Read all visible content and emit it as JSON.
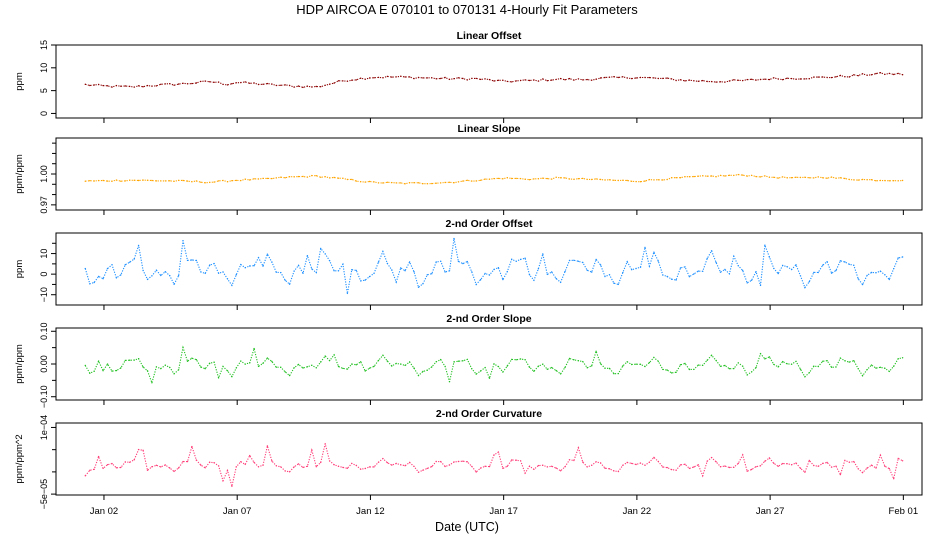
{
  "figure": {
    "title": "HDP   AIRCOA E   070101 to 070131   4-Hourly Fit Parameters",
    "xlabel": "Date (UTC)",
    "x_ticks": [
      "Jan 02",
      "Jan 07",
      "Jan 12",
      "Jan 17",
      "Jan 22",
      "Jan 27",
      "Feb 01"
    ],
    "x_tick_days": [
      2,
      7,
      12,
      17,
      22,
      27,
      32
    ],
    "xlim_days": [
      0.2,
      32.7
    ],
    "data_start_day": 1.3,
    "data_end_day": 32.0,
    "step_days": 0.1667
  },
  "chart_data": [
    {
      "type": "line",
      "title": "Linear Offset",
      "ylabel": "ppm",
      "ylim": [
        -1,
        15
      ],
      "yticks": [
        0,
        5,
        10,
        15
      ],
      "ytick_labels": [
        "0",
        "5",
        "10",
        "15"
      ],
      "color": "#8b0000",
      "series": [
        {
          "x_start": "Jan 01 07:00",
          "x_step_hours": 4,
          "keypoints": [
            [
              1.3,
              6.3
            ],
            [
              2.0,
              6.0
            ],
            [
              3.0,
              5.8
            ],
            [
              4.0,
              6.2
            ],
            [
              5.0,
              6.5
            ],
            [
              6.0,
              7.0
            ],
            [
              6.6,
              6.4
            ],
            [
              7.0,
              6.8
            ],
            [
              8.0,
              6.4
            ],
            [
              9.0,
              6.0
            ],
            [
              10.0,
              5.8
            ],
            [
              11.0,
              7.2
            ],
            [
              12.0,
              7.9
            ],
            [
              13.0,
              8.0
            ],
            [
              14.0,
              7.8
            ],
            [
              15.0,
              7.6
            ],
            [
              16.0,
              7.6
            ],
            [
              17.0,
              7.0
            ],
            [
              18.0,
              7.2
            ],
            [
              19.0,
              7.5
            ],
            [
              20.0,
              7.4
            ],
            [
              21.0,
              7.8
            ],
            [
              22.0,
              7.9
            ],
            [
              23.0,
              7.6
            ],
            [
              24.0,
              7.2
            ],
            [
              25.0,
              7.0
            ],
            [
              26.0,
              7.2
            ],
            [
              27.0,
              7.6
            ],
            [
              28.0,
              7.7
            ],
            [
              29.0,
              7.9
            ],
            [
              30.0,
              8.2
            ],
            [
              31.0,
              8.7
            ],
            [
              32.0,
              8.6
            ]
          ],
          "noise": 0.25
        }
      ]
    },
    {
      "type": "line",
      "title": "Linear Slope",
      "ylabel": "ppm/ppm",
      "ylim": [
        0.965,
        1.035
      ],
      "yticks": [
        0.97,
        1.0
      ],
      "ytick_labels": [
        "0.97",
        "1.00"
      ],
      "ytick_minor": [
        0.98,
        0.99,
        1.01,
        1.02,
        1.03
      ],
      "color": "#ffa500",
      "series": [
        {
          "x_start": "Jan 01 07:00",
          "x_step_hours": 4,
          "keypoints": [
            [
              1.3,
              0.993
            ],
            [
              3.0,
              0.994
            ],
            [
              5.0,
              0.993
            ],
            [
              6.0,
              0.992
            ],
            [
              7.0,
              0.994
            ],
            [
              8.0,
              0.995
            ],
            [
              9.0,
              0.997
            ],
            [
              10.0,
              0.998
            ],
            [
              11.0,
              0.995
            ],
            [
              12.0,
              0.992
            ],
            [
              13.0,
              0.991
            ],
            [
              14.0,
              0.991
            ],
            [
              15.0,
              0.992
            ],
            [
              16.0,
              0.994
            ],
            [
              17.0,
              0.996
            ],
            [
              18.0,
              0.995
            ],
            [
              19.0,
              0.996
            ],
            [
              20.0,
              0.995
            ],
            [
              21.0,
              0.994
            ],
            [
              22.0,
              0.993
            ],
            [
              23.0,
              0.995
            ],
            [
              24.0,
              0.997
            ],
            [
              25.0,
              0.998
            ],
            [
              26.0,
              0.999
            ],
            [
              27.0,
              0.997
            ],
            [
              28.0,
              0.996
            ],
            [
              29.0,
              0.997
            ],
            [
              30.0,
              0.995
            ],
            [
              31.0,
              0.994
            ],
            [
              32.0,
              0.994
            ]
          ],
          "noise": 0.0008
        }
      ]
    },
    {
      "type": "line",
      "title": "2-nd Order Offset",
      "ylabel": "ppm",
      "ylim": [
        -15,
        20
      ],
      "yticks": [
        -10,
        0,
        10
      ],
      "ytick_labels": [
        "−10",
        "0",
        "10"
      ],
      "ytick_minor": [
        -5,
        5,
        15
      ],
      "color": "#1e90ff",
      "series": [
        {
          "x_start": "Jan 01 07:00",
          "x_step_hours": 4,
          "keypoints": [
            [
              1.3,
              1
            ],
            [
              32.0,
              2
            ]
          ],
          "osc_amp": 6,
          "spike_amp": 10,
          "base": 2
        }
      ]
    },
    {
      "type": "line",
      "title": "2-nd Order Slope",
      "ylabel": "ppm/ppm",
      "ylim": [
        -0.11,
        0.11
      ],
      "yticks": [
        -0.1,
        0.0,
        0.1
      ],
      "ytick_labels": [
        "−0.10",
        "0.00",
        "0.10"
      ],
      "ytick_minor": [
        -0.05,
        0.05
      ],
      "color": "#22c022",
      "series": [
        {
          "x_start": "Jan 01 07:00",
          "x_step_hours": 4,
          "keypoints": [
            [
              1.3,
              0.0
            ],
            [
              32.0,
              0.0
            ]
          ],
          "osc_amp": 0.022,
          "spike_amp": 0.04,
          "base": -0.005
        }
      ]
    },
    {
      "type": "line",
      "title": "2-nd Order Curvature",
      "ylabel": "ppm/ppm^2",
      "ylim": [
        -5.2e-05,
        0.00011
      ],
      "yticks": [
        -5e-05,
        0.0001
      ],
      "ytick_labels": [
        "−5e−05",
        "1e−04"
      ],
      "ytick_minor": [
        0,
        5e-05
      ],
      "color": "#ff3c78",
      "series": [
        {
          "x_start": "Jan 01 07:00",
          "x_step_hours": 4,
          "keypoints": [
            [
              1.3,
              1e-05
            ],
            [
              32.0,
              1e-05
            ]
          ],
          "osc_amp": 1.2e-05,
          "spike_amp": 3e-05,
          "base": 1.5e-05
        }
      ]
    }
  ]
}
